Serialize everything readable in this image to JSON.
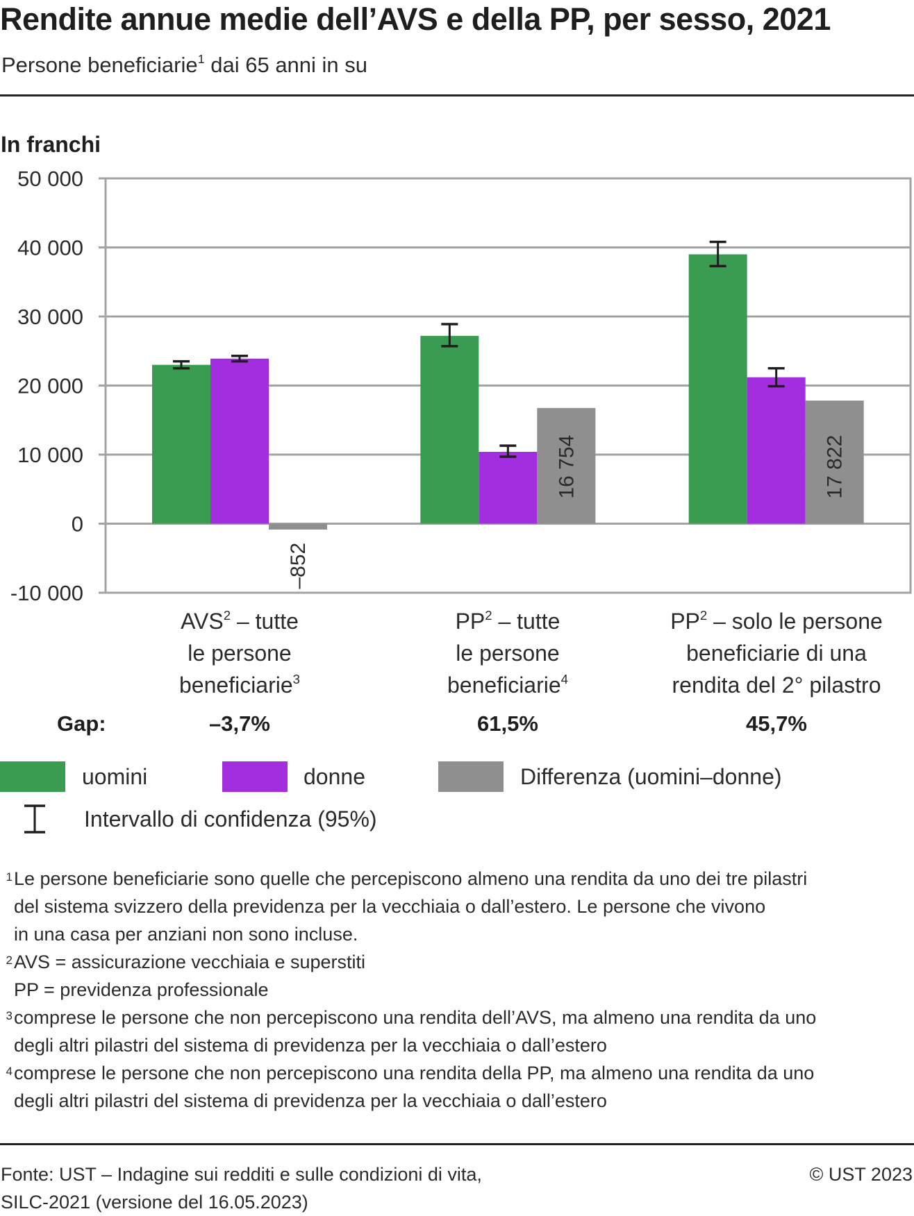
{
  "header": {
    "title": "Rendite annue medie dell’AVS e della PP, per sesso, 2021",
    "subtitle_main": "Persone beneficiarie",
    "subtitle_sup": "1",
    "subtitle_rest": " dai 65 anni in su"
  },
  "colors": {
    "men": "#3a9c50",
    "women": "#a22ee0",
    "difference": "#8f8f8f",
    "grid": "#a3a3a3",
    "error_bar": "#1e1e1e"
  },
  "chart_data": {
    "type": "bar",
    "title": "Rendite annue medie dell’AVS e della PP, per sesso, 2021",
    "subtitle": "Persone beneficiarie dai 65 anni in su",
    "ylabel": "In franchi",
    "xlabel": "",
    "ylim": [
      -10000,
      50000
    ],
    "yticks": [
      50000,
      40000,
      30000,
      20000,
      10000,
      0,
      -10000
    ],
    "ytick_labels": [
      "50 000",
      "40 000",
      "30 000",
      "20 000",
      "10 000",
      "0",
      "-10 000"
    ],
    "grid": true,
    "legend_position": "bottom",
    "categories": [
      {
        "lines": [
          "AVS",
          "– tutte",
          "le persone",
          "beneficiarie"
        ],
        "label": "AVS² – tutte le persone beneficiarie³",
        "line1_main": "AVS",
        "line1_sup": "2",
        "line1_rest": " – tutte",
        "line2": "le persone",
        "line3_main": "beneficiarie",
        "line3_sup": "3"
      },
      {
        "label": "PP² – tutte le persone beneficiarie⁴",
        "line1_main": "PP",
        "line1_sup": "2",
        "line1_rest": " – tutte",
        "line2": "le persone",
        "line3_main": "beneficiarie",
        "line3_sup": "4"
      },
      {
        "label": "PP² – solo le persone beneficiarie di una rendita del 2° pilastro",
        "line1_main": "PP",
        "line1_sup": "2",
        "line1_rest": " – solo le persone",
        "line2": "beneficiarie di una",
        "line3_main": "rendita del 2° pilastro",
        "line3_sup": ""
      }
    ],
    "series": [
      {
        "name": "uomini",
        "key": "men",
        "values": [
          23000,
          27200,
          39000
        ],
        "ci_low": [
          22500,
          25700,
          37300
        ],
        "ci_high": [
          23500,
          28900,
          40800
        ]
      },
      {
        "name": "donne",
        "key": "women",
        "values": [
          23900,
          10400,
          21200
        ],
        "ci_low": [
          23500,
          9700,
          19900
        ],
        "ci_high": [
          24300,
          11300,
          22500
        ]
      },
      {
        "name": "Differenza (uomini–donne)",
        "key": "difference",
        "values": [
          -852,
          16754,
          17822
        ],
        "data_labels": [
          "–852",
          "16 754",
          "17 822"
        ]
      }
    ],
    "gap": {
      "label": "Gap:",
      "values": [
        "–3,7%",
        "61,5%",
        "45,7%"
      ]
    }
  },
  "legend": {
    "items": [
      {
        "label": "uomini",
        "key": "men"
      },
      {
        "label": "donne",
        "key": "women"
      },
      {
        "label": "Differenza (uomini–donne)",
        "key": "difference"
      }
    ],
    "confidence_label": "Intervallo di confidenza (95%)"
  },
  "footnotes": [
    {
      "num": "1",
      "lines": [
        "Le persone beneficiarie sono quelle che percepiscono almeno una rendita da uno dei tre pilastri",
        "del sistema svizzero della previdenza per la vecchiaia o dall’estero. Le persone che vivono",
        "in una casa per anziani non sono incluse."
      ]
    },
    {
      "num": "2",
      "lines": [
        "AVS = assicurazione vecchiaia e superstiti",
        "PP = previdenza professionale"
      ]
    },
    {
      "num": "3",
      "lines": [
        "comprese le persone che non percepiscono una rendita dell’AVS, ma almeno una rendita da uno",
        "degli altri pilastri del sistema di previdenza per la vecchiaia o dall’estero"
      ]
    },
    {
      "num": "4",
      "lines": [
        "comprese le persone che non percepiscono una rendita della PP, ma almeno una rendita da uno",
        "degli altri pilastri del sistema di previdenza per la vecchiaia o dall’estero"
      ]
    }
  ],
  "footer": {
    "source_line1": "Fonte: UST – Indagine sui redditi e sulle condizioni di vita,",
    "source_line2": "SILC-2021  (versione del 16.05.2023)",
    "copyright": "© UST 2023"
  }
}
